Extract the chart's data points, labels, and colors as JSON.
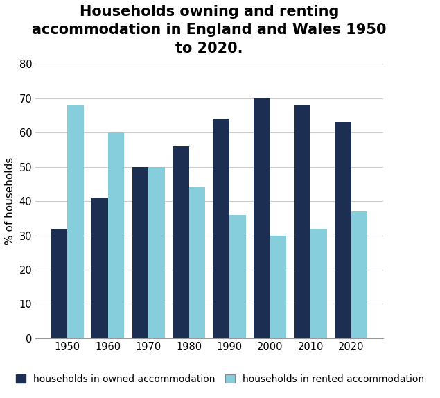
{
  "title": "Households owning and renting\naccommodation in England and Wales 1950\nto 2020.",
  "years": [
    1950,
    1960,
    1970,
    1980,
    1990,
    2000,
    2010,
    2020
  ],
  "owned": [
    32,
    41,
    50,
    56,
    64,
    70,
    68,
    63
  ],
  "rented": [
    68,
    60,
    50,
    44,
    36,
    30,
    32,
    37
  ],
  "color_owned": "#1c2f52",
  "color_rented": "#87cedc",
  "ylabel": "% of households",
  "ylim": [
    0,
    80
  ],
  "yticks": [
    0,
    10,
    20,
    30,
    40,
    50,
    60,
    70,
    80
  ],
  "legend_owned": "households in owned accommodation",
  "legend_rented": "households in rented accommodation",
  "bar_width": 0.4,
  "title_fontsize": 15,
  "axis_fontsize": 11,
  "legend_fontsize": 10,
  "tick_fontsize": 10.5
}
